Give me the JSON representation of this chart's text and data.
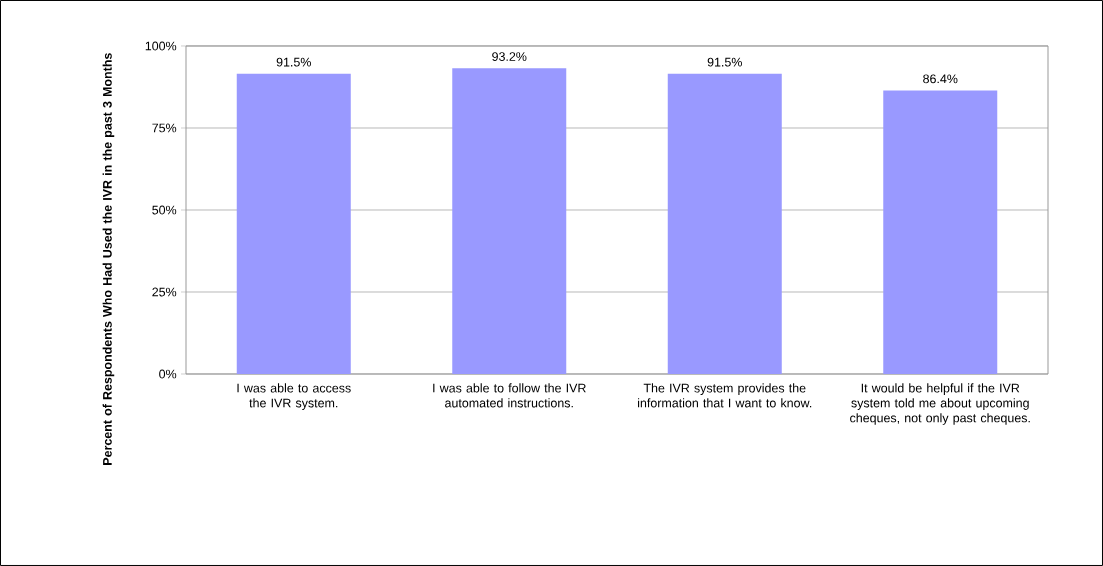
{
  "chart_data": {
    "type": "bar",
    "ylabel": "Percent of Respondents Who Had Used the IVR in the past 3 Months",
    "categories": [
      "I was able to access the IVR system.",
      "I was able to follow the IVR automated instructions.",
      "The IVR system provides the information that I want to know.",
      "It would be helpful if the IVR system told me about upcoming cheques, not only past cheques."
    ],
    "values": [
      91.5,
      93.2,
      91.5,
      86.4
    ],
    "value_labels": [
      "91.5%",
      "93.2%",
      "91.5%",
      "86.4%"
    ],
    "color": "#9999ff",
    "ylim": [
      0,
      100
    ],
    "yticks": [
      {
        "value": 0,
        "label": "0%"
      },
      {
        "value": 25,
        "label": "25%"
      },
      {
        "value": 50,
        "label": "50%"
      },
      {
        "value": 75,
        "label": "75%"
      },
      {
        "value": 100,
        "label": "100%"
      }
    ],
    "grid": "y"
  }
}
